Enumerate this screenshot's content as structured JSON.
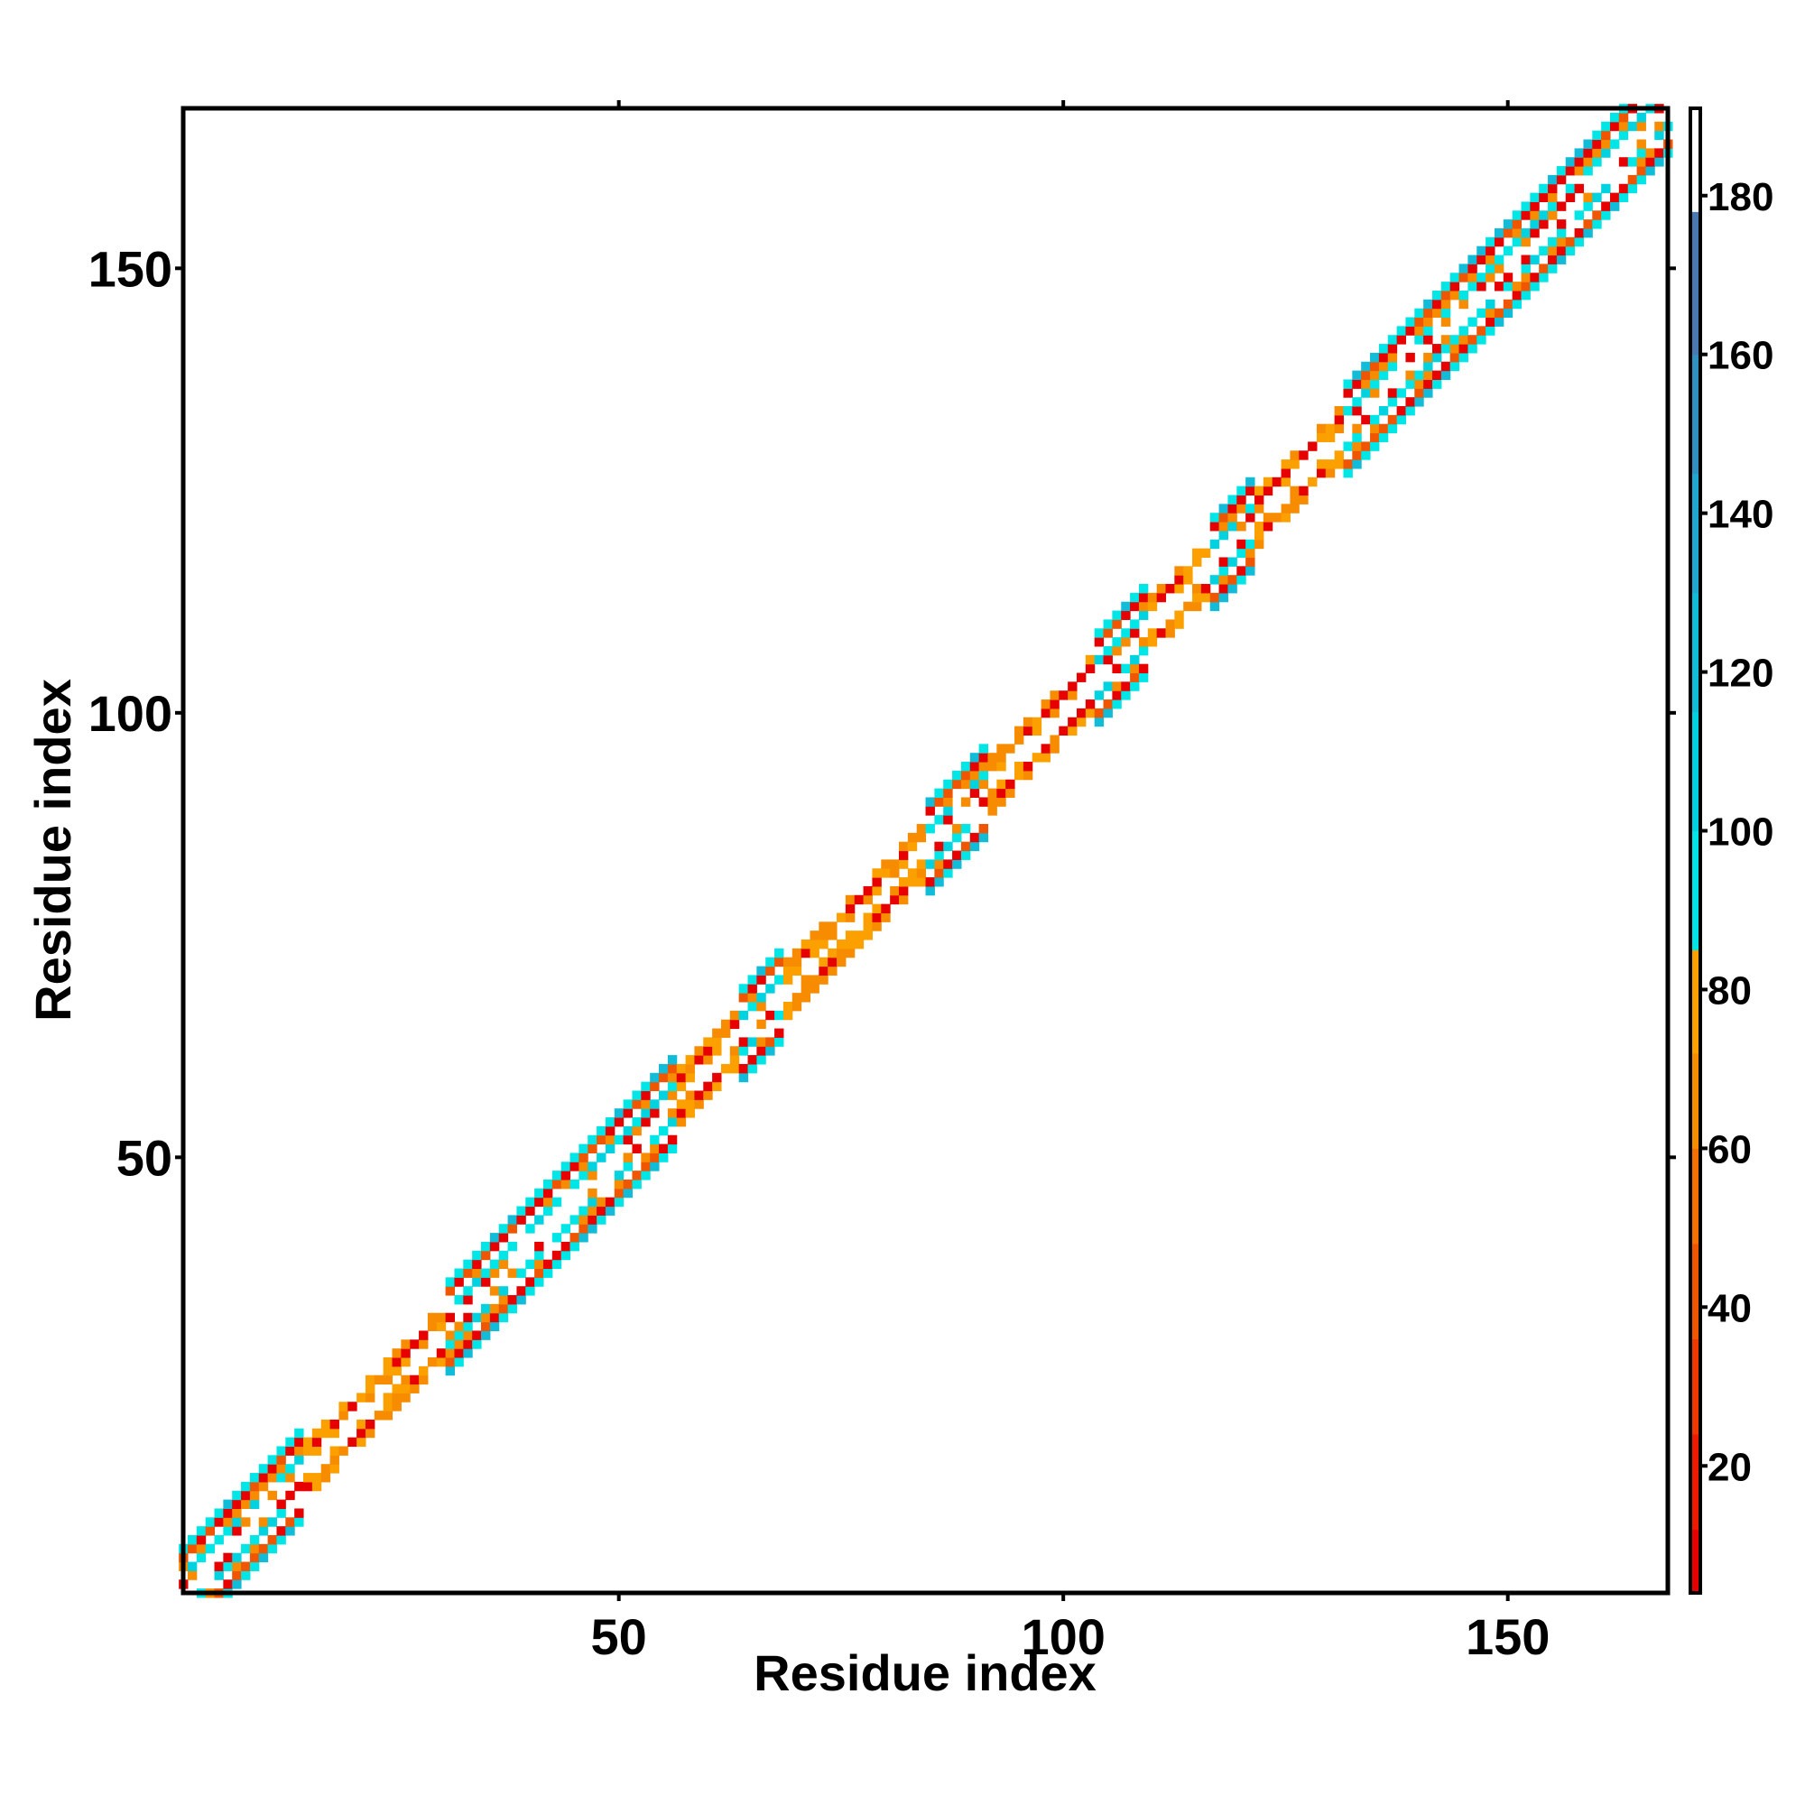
{
  "chart_data": {
    "type": "heatmap",
    "title": "",
    "xlabel": "Residue index",
    "ylabel": "Residue index",
    "xlim": [
      1,
      168
    ],
    "ylim": [
      1,
      168
    ],
    "x_ticks": [
      50,
      100,
      150
    ],
    "y_ticks": [
      50,
      100,
      150
    ],
    "colorbar": {
      "range": [
        4,
        191
      ],
      "ticks": [
        20,
        40,
        60,
        80,
        100,
        120,
        140,
        160,
        180
      ],
      "segments": [
        {
          "from": 4,
          "to": 12,
          "color": "#e60000"
        },
        {
          "from": 12,
          "to": 24,
          "color": "#ee1a00"
        },
        {
          "from": 24,
          "to": 36,
          "color": "#ee3800"
        },
        {
          "from": 36,
          "to": 48,
          "color": "#f05500"
        },
        {
          "from": 48,
          "to": 60,
          "color": "#f47000"
        },
        {
          "from": 60,
          "to": 72,
          "color": "#f88c00"
        },
        {
          "from": 72,
          "to": 85,
          "color": "#fca000"
        },
        {
          "from": 85,
          "to": 100,
          "color": "#00e5e5"
        },
        {
          "from": 100,
          "to": 115,
          "color": "#00d2e0"
        },
        {
          "from": 115,
          "to": 130,
          "color": "#10bcd8"
        },
        {
          "from": 130,
          "to": 145,
          "color": "#20a8d0"
        },
        {
          "from": 145,
          "to": 160,
          "color": "#3090c0"
        },
        {
          "from": 160,
          "to": 178,
          "color": "#4a78b0"
        },
        {
          "from": 178,
          "to": 191,
          "color": "#ffffff"
        }
      ]
    },
    "diagonal_regions": [
      {
        "start": 1,
        "end": 15,
        "type": "sheet"
      },
      {
        "start": 15,
        "end": 31,
        "type": "helix"
      },
      {
        "start": 31,
        "end": 57,
        "type": "sheet"
      },
      {
        "start": 57,
        "end": 64,
        "type": "helix"
      },
      {
        "start": 64,
        "end": 69,
        "type": "sheet"
      },
      {
        "start": 69,
        "end": 85,
        "type": "helix"
      },
      {
        "start": 85,
        "end": 92,
        "type": "sheet"
      },
      {
        "start": 92,
        "end": 104,
        "type": "helix"
      },
      {
        "start": 104,
        "end": 110,
        "type": "sheet"
      },
      {
        "start": 110,
        "end": 117,
        "type": "helix"
      },
      {
        "start": 117,
        "end": 122,
        "type": "sheet"
      },
      {
        "start": 122,
        "end": 132,
        "type": "helix"
      },
      {
        "start": 132,
        "end": 166,
        "type": "sheet"
      }
    ]
  }
}
